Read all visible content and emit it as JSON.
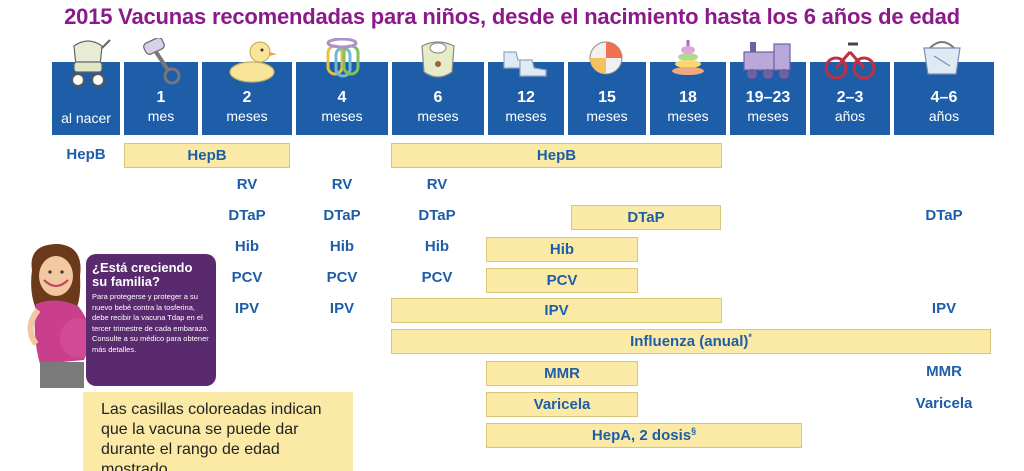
{
  "title": "2015 Vacunas recomendadas para niños, desde el nacimiento hasta los 6 años de edad",
  "colors": {
    "header_blue": "#1e5ea8",
    "title_purple": "#8a1a8a",
    "bar_yellow": "#fbeaa6",
    "box_purple": "#5a2a6e"
  },
  "ages": [
    {
      "big": "",
      "small": "al nacer",
      "icon": "stroller-icon"
    },
    {
      "big": "1",
      "small": "mes",
      "icon": "rattle-icon"
    },
    {
      "big": "2",
      "small": "meses",
      "icon": "rubber-duck-icon"
    },
    {
      "big": "4",
      "small": "meses",
      "icon": "teething-rings-icon"
    },
    {
      "big": "6",
      "small": "meses",
      "icon": "bib-icon"
    },
    {
      "big": "12",
      "small": "meses",
      "icon": "baby-shoes-icon"
    },
    {
      "big": "15",
      "small": "meses",
      "icon": "beach-ball-icon"
    },
    {
      "big": "18",
      "small": "meses",
      "icon": "stacking-rings-icon"
    },
    {
      "big": "19–23",
      "small": "meses",
      "icon": "toy-train-icon"
    },
    {
      "big": "2–3",
      "small": "años",
      "icon": "tricycle-icon"
    },
    {
      "big": "4–6",
      "small": "años",
      "icon": "lunchbox-icon"
    }
  ],
  "vaccines": {
    "hepb_birth": "HepB",
    "hepb_bar1": "HepB",
    "hepb_bar2": "HepB",
    "rv_2": "RV",
    "rv_4": "RV",
    "rv_6": "RV",
    "dtap_2": "DTaP",
    "dtap_4": "DTaP",
    "dtap_6": "DTaP",
    "dtap_bar": "DTaP",
    "dtap_46": "DTaP",
    "hib_2": "Hib",
    "hib_4": "Hib",
    "hib_6": "Hib",
    "hib_bar": "Hib",
    "pcv_2": "PCV",
    "pcv_4": "PCV",
    "pcv_6": "PCV",
    "pcv_bar": "PCV",
    "ipv_2": "IPV",
    "ipv_4": "IPV",
    "ipv_bar": "IPV",
    "ipv_46": "IPV",
    "influenza_bar": "Influenza (anual)",
    "influenza_mark": "*",
    "mmr_bar": "MMR",
    "mmr_46": "MMR",
    "varicela_bar": "Varicela",
    "varicela_46": "Varicela",
    "hepa_bar": "HepA, 2 dosis",
    "hepa_mark": "§"
  },
  "family_box": {
    "title": "¿Está creciendo su familia?",
    "text": "Para protegerse y proteger a su nuevo bebé contra la tosferina, debe recibir la vacuna Tdap en el tercer trimestre de cada embarazo. Consulte a su médico para obtener más detalles."
  },
  "note": {
    "text": "Las casillas coloreadas indican que la vacuna se puede dar durante el rango de edad mostrado."
  }
}
